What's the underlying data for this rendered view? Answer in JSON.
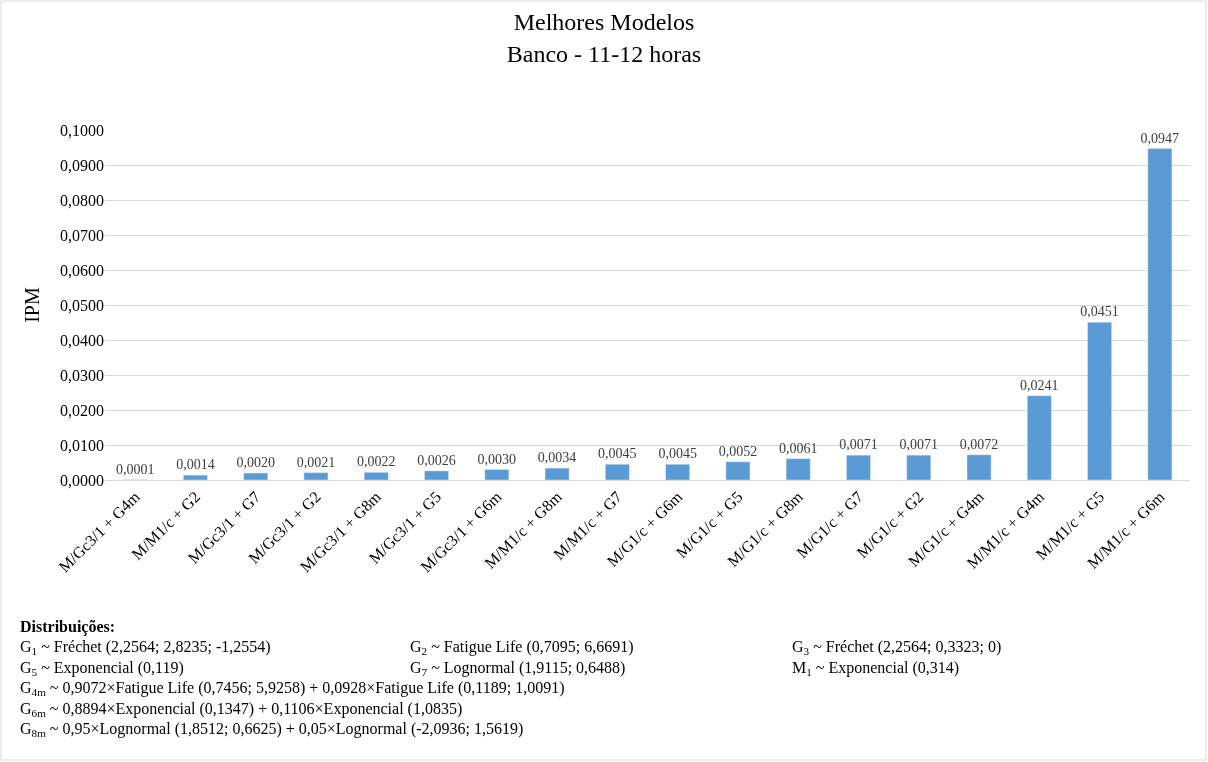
{
  "chart_data": {
    "type": "bar",
    "title": "Melhores Modelos",
    "subtitle": "Banco - 11-12 horas",
    "ylabel": "IPM",
    "categories": [
      "M/Gc3/1 + G4m",
      "M/M1/c + G2",
      "M/Gc3/1 + G7",
      "M/Gc3/1 + G2",
      "M/Gc3/1 + G8m",
      "M/Gc3/1 + G5",
      "M/Gc3/1 + G6m",
      "M/M1/c + G8m",
      "M/M1/c + G7",
      "M/G1/c + G6m",
      "M/G1/c + G5",
      "M/G1/c + G8m",
      "M/G1/c + G7",
      "M/G1/c + G2",
      "M/G1/c + G4m",
      "M/M1/c + G4m",
      "M/M1/c + G5",
      "M/M1/c + G6m"
    ],
    "values": [
      0.0001,
      0.0014,
      0.002,
      0.0021,
      0.0022,
      0.0026,
      0.003,
      0.0034,
      0.0045,
      0.0045,
      0.0052,
      0.0061,
      0.0071,
      0.0071,
      0.0072,
      0.0241,
      0.0451,
      0.0947
    ],
    "value_labels": [
      "0,0001",
      "0,0014",
      "0,0020",
      "0,0021",
      "0,0022",
      "0,0026",
      "0,0030",
      "0,0034",
      "0,0045",
      "0,0045",
      "0,0052",
      "0,0061",
      "0,0071",
      "0,0071",
      "0,0072",
      "0,0241",
      "0,0451",
      "0,0947"
    ],
    "color": "#5b9bd5",
    "grid": "y",
    "legend": false,
    "ylim": [
      0,
      0.1
    ],
    "yticks": [
      {
        "value": 0,
        "label": "0,0000"
      },
      {
        "value": 0.01,
        "label": "0,0100"
      },
      {
        "value": 0.02,
        "label": "0,0200"
      },
      {
        "value": 0.03,
        "label": "0,0300"
      },
      {
        "value": 0.04,
        "label": "0,0400"
      },
      {
        "value": 0.05,
        "label": "0,0500"
      },
      {
        "value": 0.06,
        "label": "0,0600"
      },
      {
        "value": 0.07,
        "label": "0,0700"
      },
      {
        "value": 0.08,
        "label": "0,0800"
      },
      {
        "value": 0.09,
        "label": "0,0900"
      },
      {
        "value": 0.1,
        "label": "0,1000"
      }
    ],
    "annotations": [
      "Distribuições:",
      "G$_{1}$ ~ Fréchet (2,2564; 2,8235; -1,2554)",
      "G$_{2}$ ~ Fatigue Life (0,7095; 6,6691)",
      "G$_{3}$ ~ Fréchet (2,2564; 0,3323; 0)",
      "G$_{5}$ ~ Exponencial (0,119)",
      "G$_{7}$ ~ Lognormal (1,9115; 0,6488)",
      "M$_{1}$ ~ Exponencial (0,314)",
      "G$_{4m}$ ~ 0,9072×Fatigue Life (0,7456; 5,9258) + 0,0928×Fatigue Life (0,1189; 1,0091)",
      "G$_{6m}$ ~ 0,8894×Exponencial (0,1347) + 0,1106×Exponencial (1,0835)",
      "G$_{8m}$ ~ 0,95×Lognormal (1,8512; 0,6625) + 0,05×Lognormal (-2,0936; 1,5619)"
    ]
  }
}
